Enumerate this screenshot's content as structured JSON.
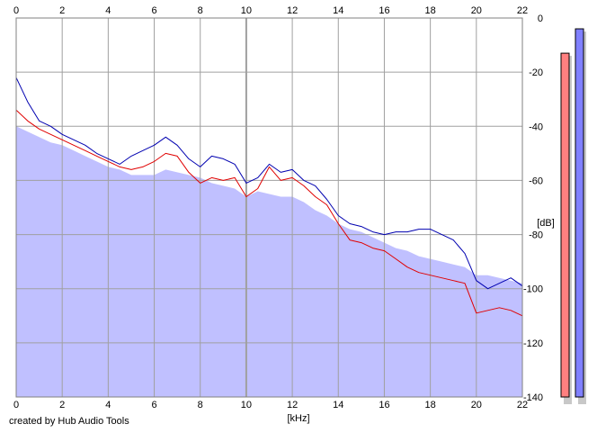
{
  "footer": {
    "credit": "created by Hub Audio Tools"
  },
  "chart_data": {
    "type": "area",
    "xlabel": "[kHz]",
    "ylabel": "[dB]",
    "xlim": [
      0,
      22
    ],
    "ylim": [
      -140,
      0
    ],
    "x_ticks": [
      "0",
      "2",
      "4",
      "6",
      "8",
      "10",
      "12",
      "14",
      "16",
      "18",
      "20",
      "22"
    ],
    "y_ticks": [
      "0",
      "-20",
      "-40",
      "-60",
      "-80",
      "-100",
      "-120",
      "-140"
    ],
    "grid": true,
    "colors": {
      "fill": "#c0c0ff",
      "channel_a": "#e00000",
      "channel_b": "#0000b0",
      "meter_a": "#ff8080",
      "meter_b": "#8080ff",
      "grid": "#a0a0a0"
    },
    "series": [
      {
        "role": "fill",
        "x": [
          0,
          0.5,
          1,
          1.5,
          2,
          2.5,
          3,
          3.5,
          4,
          4.5,
          5,
          5.5,
          6,
          6.5,
          7,
          7.5,
          8,
          8.5,
          9,
          9.5,
          10,
          10.5,
          11,
          11.5,
          12,
          12.5,
          13,
          13.5,
          14,
          14.5,
          15,
          15.5,
          16,
          16.5,
          17,
          17.5,
          18,
          18.5,
          19,
          19.5,
          20,
          20.5,
          21,
          21.5,
          22
        ],
        "values": [
          -40,
          -42,
          -44,
          -46,
          -47,
          -49,
          -51,
          -53,
          -55,
          -56,
          -58,
          -58,
          -58,
          -56,
          -57,
          -58,
          -59,
          -61,
          -62,
          -63,
          -66,
          -64,
          -65,
          -66,
          -66,
          -68,
          -71,
          -73,
          -76,
          -78,
          -79,
          -81,
          -83,
          -85,
          -86,
          -88,
          -89,
          -90,
          -91,
          -92,
          -95,
          -95,
          -96,
          -97,
          -98
        ]
      },
      {
        "role": "channel_a",
        "x": [
          0,
          0.5,
          1,
          1.5,
          2,
          2.5,
          3,
          3.5,
          4,
          4.5,
          5,
          5.5,
          6,
          6.5,
          7,
          7.5,
          8,
          8.5,
          9,
          9.5,
          10,
          10.5,
          11,
          11.5,
          12,
          12.5,
          13,
          13.5,
          14,
          14.5,
          15,
          15.5,
          16,
          16.5,
          17,
          17.5,
          18,
          18.5,
          19,
          19.5,
          20,
          20.5,
          21,
          21.5,
          22
        ],
        "values": [
          -34,
          -38,
          -41,
          -43,
          -45,
          -47,
          -49,
          -51,
          -53,
          -55,
          -56,
          -55,
          -53,
          -50,
          -51,
          -57,
          -61,
          -59,
          -60,
          -59,
          -66,
          -63,
          -55,
          -60,
          -59,
          -62,
          -66,
          -69,
          -76,
          -82,
          -83,
          -85,
          -86,
          -89,
          -92,
          -94,
          -95,
          -96,
          -97,
          -98,
          -109,
          -108,
          -107,
          -108,
          -110
        ]
      },
      {
        "role": "channel_b",
        "x": [
          0,
          0.5,
          1,
          1.5,
          2,
          2.5,
          3,
          3.5,
          4,
          4.5,
          5,
          5.5,
          6,
          6.5,
          7,
          7.5,
          8,
          8.5,
          9,
          9.5,
          10,
          10.5,
          11,
          11.5,
          12,
          12.5,
          13,
          13.5,
          14,
          14.5,
          15,
          15.5,
          16,
          16.5,
          17,
          17.5,
          18,
          18.5,
          19,
          19.5,
          20,
          20.5,
          21,
          21.5,
          22
        ],
        "values": [
          -22,
          -31,
          -38,
          -40,
          -43,
          -45,
          -47,
          -50,
          -52,
          -54,
          -51,
          -49,
          -47,
          -44,
          -47,
          -52,
          -55,
          -51,
          -52,
          -54,
          -61,
          -59,
          -54,
          -57,
          -56,
          -60,
          -62,
          -67,
          -73,
          -76,
          -77,
          -79,
          -80,
          -79,
          -79,
          -78,
          -78,
          -80,
          -82,
          -87,
          -97,
          -100,
          -98,
          -96,
          -99
        ]
      }
    ],
    "meters": [
      {
        "role": "meter_a",
        "peak": -13
      },
      {
        "role": "meter_b",
        "peak": -4
      }
    ]
  }
}
